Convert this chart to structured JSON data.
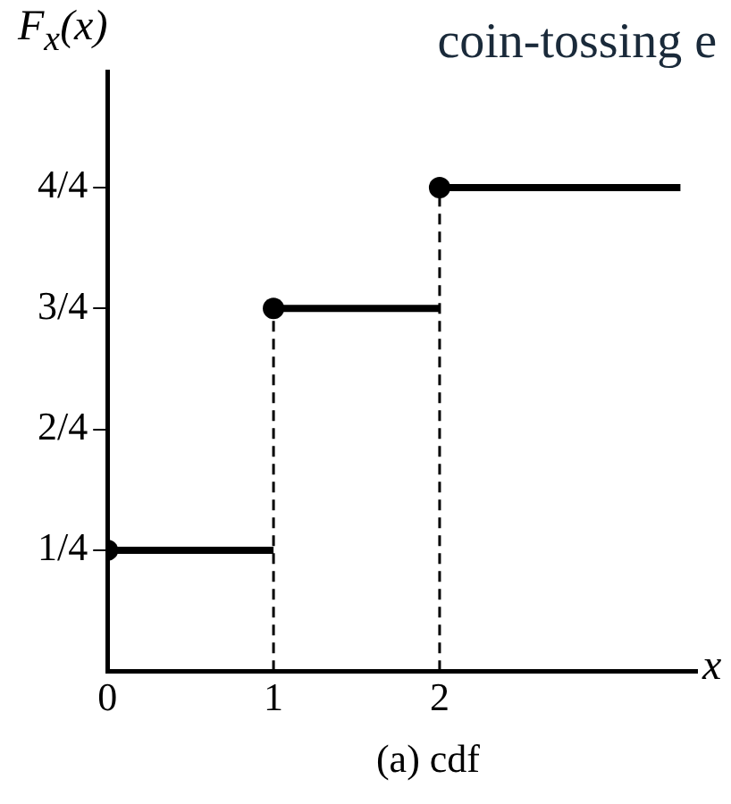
{
  "chart_data": {
    "type": "line",
    "title": "coin-tossing e",
    "ylabel": "F$_{x}$(x)",
    "xlabel": "x",
    "annotations": [
      "(a) cdf"
    ],
    "xlim": [
      0,
      3.55
    ],
    "xticks": [
      0,
      1,
      2
    ],
    "ylim": [
      0,
      1.24
    ],
    "yticks": [
      {
        "value": 0.25,
        "label": "1/4"
      },
      {
        "value": 0.5,
        "label": "2/4"
      },
      {
        "value": 0.75,
        "label": "3/4"
      },
      {
        "value": 1,
        "label": "4/4"
      }
    ],
    "grid": false,
    "legend": false,
    "series": [
      {
        "color": "#000000",
        "marker": "none",
        "x": [
          0,
          1
        ],
        "values": [
          0.25,
          0.25
        ]
      },
      {
        "color": "#000000",
        "marker": "none",
        "x": [
          1,
          2
        ],
        "values": [
          0.75,
          0.75
        ]
      },
      {
        "color": "#000000",
        "marker": "none",
        "x": [
          2,
          3.45
        ],
        "values": [
          1,
          1
        ]
      },
      {
        "type": "scatter",
        "color": "#000000",
        "marker": "circle",
        "x": [
          0,
          1,
          2
        ],
        "values": [
          0.25,
          0.75,
          1
        ]
      }
    ],
    "ref_lines": [
      {
        "axis": "x",
        "value": 1,
        "line_style": "dashed"
      },
      {
        "axis": "x",
        "value": 2,
        "line_style": "dashed"
      }
    ]
  }
}
